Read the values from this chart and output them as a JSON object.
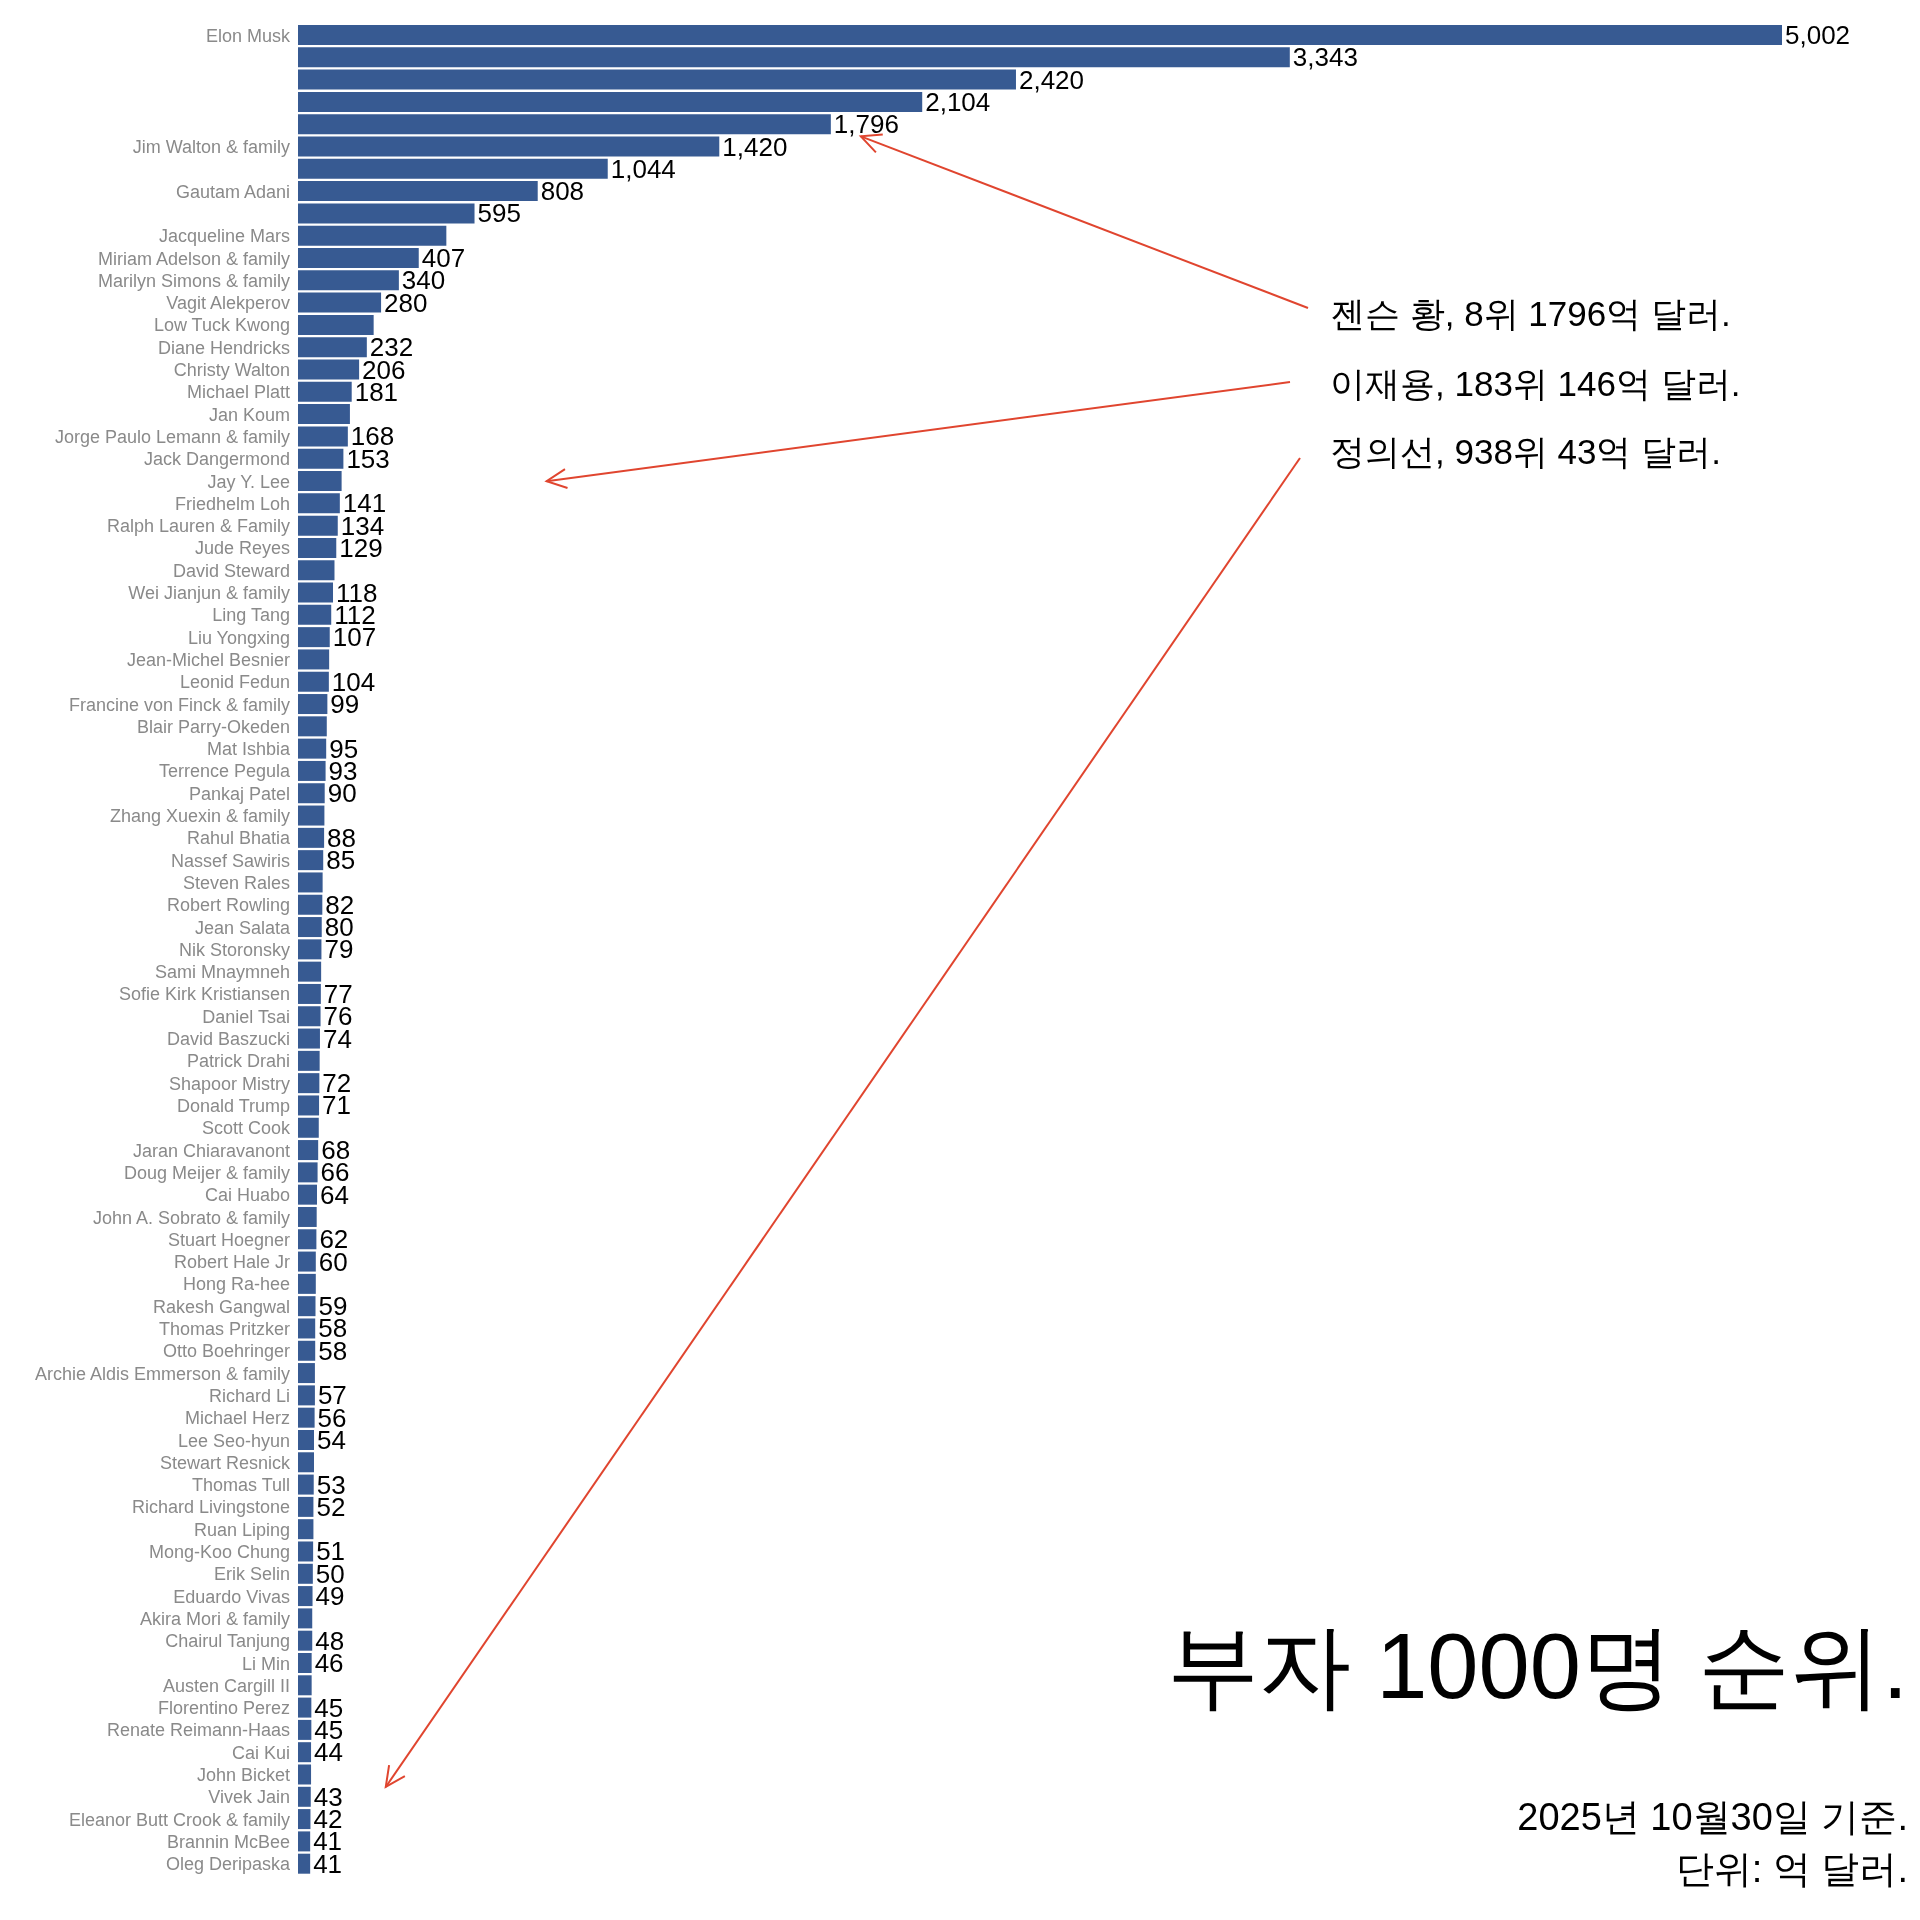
{
  "chart_data": {
    "type": "bar",
    "orientation": "horizontal",
    "title": "부자 1000명 순위.",
    "categories": [
      "Elon Musk",
      null,
      null,
      null,
      null,
      "Jim Walton & family",
      null,
      "Gautam Adani",
      null,
      "Jacqueline Mars",
      "Miriam Adelson & family",
      "Marilyn Simons & family",
      "Vagit Alekperov",
      "Low Tuck Kwong",
      "Diane Hendricks",
      "Christy Walton",
      "Michael Platt",
      "Jan Koum",
      "Jorge Paulo Lemann & family",
      "Jack Dangermond",
      "Jay Y. Lee",
      "Friedhelm Loh",
      "Ralph Lauren & Family",
      "Jude Reyes",
      "David Steward",
      "Wei Jianjun & family",
      "Ling Tang",
      "Liu Yongxing",
      "Jean-Michel Besnier",
      "Leonid Fedun",
      "Francine von Finck & family",
      "Blair Parry-Okeden",
      "Mat Ishbia",
      "Terrence Pegula",
      "Pankaj Patel",
      "Zhang Xuexin & family",
      "Rahul Bhatia",
      "Nassef Sawiris",
      "Steven Rales",
      "Robert Rowling",
      "Jean Salata",
      "Nik Storonsky",
      "Sami Mnaymneh",
      "Sofie Kirk Kristiansen",
      "Daniel Tsai",
      "David Baszucki",
      "Patrick Drahi",
      "Shapoor Mistry",
      "Donald Trump",
      "Scott Cook",
      "Jaran Chiaravanont",
      "Doug Meijer & family",
      "Cai Huabo",
      "John A. Sobrato & family",
      "Stuart Hoegner",
      "Robert Hale Jr",
      "Hong Ra-hee",
      "Rakesh Gangwal",
      "Thomas Pritzker",
      "Otto Boehringer",
      "Archie Aldis Emmerson & family",
      "Richard Li",
      "Michael Herz",
      "Lee Seo-hyun",
      "Stewart Resnick",
      "Thomas Tull",
      "Richard Livingstone",
      "Ruan Liping",
      "Mong-Koo Chung",
      "Erik Selin",
      "Eduardo Vivas",
      "Akira Mori & family",
      "Chairul Tanjung",
      "Li Min",
      "Austen Cargill II",
      "Florentino Perez",
      "Renate Reimann-Haas",
      "Cai Kui",
      "John Bicket",
      "Vivek Jain",
      "Eleanor Butt Crook & family",
      "Brannin McBee",
      "Oleg Deripaska"
    ],
    "values": [
      5002,
      3343,
      2420,
      2104,
      1796,
      1420,
      1044,
      808,
      595,
      500,
      407,
      340,
      280,
      255,
      232,
      206,
      181,
      175,
      168,
      153,
      147,
      141,
      134,
      129,
      123,
      118,
      112,
      107,
      105,
      104,
      99,
      97,
      95,
      93,
      90,
      89,
      88,
      85,
      83,
      82,
      80,
      79,
      78,
      77,
      76,
      74,
      73,
      72,
      71,
      70,
      68,
      66,
      64,
      63,
      62,
      60,
      60,
      59,
      58,
      58,
      57,
      57,
      56,
      54,
      54,
      53,
      52,
      52,
      51,
      50,
      49,
      48,
      48,
      46,
      46,
      45,
      45,
      44,
      44,
      43,
      42,
      41,
      41
    ],
    "value_labels": [
      "5,002",
      "3,343",
      "2,420",
      "2,104",
      "1,796",
      "1,420",
      "1,044",
      "808",
      "595",
      null,
      "407",
      "340",
      "280",
      null,
      "232",
      "206",
      "181",
      null,
      "168",
      "153",
      null,
      "141",
      "134",
      "129",
      null,
      "118",
      "112",
      "107",
      null,
      "104",
      "99",
      null,
      "95",
      "93",
      "90",
      null,
      "88",
      "85",
      null,
      "82",
      "80",
      "79",
      null,
      "77",
      "76",
      "74",
      null,
      "72",
      "71",
      null,
      "68",
      "66",
      "64",
      null,
      "62",
      "60",
      null,
      "59",
      "58",
      "58",
      null,
      "57",
      "56",
      "54",
      null,
      "53",
      "52",
      null,
      "51",
      "50",
      "49",
      null,
      "48",
      "46",
      null,
      "45",
      "45",
      "44",
      null,
      "43",
      "42",
      "41",
      "41"
    ],
    "color": "#375a92",
    "annotations": [
      "젠슨 황, 8위 1796억 달러.",
      "이재용, 183위 146억 달러.",
      "정의선, 938위 43억 달러.",
      "2025년 10월30일 기준.",
      "단위: 억 달러."
    ],
    "grid": false,
    "legend": false
  }
}
